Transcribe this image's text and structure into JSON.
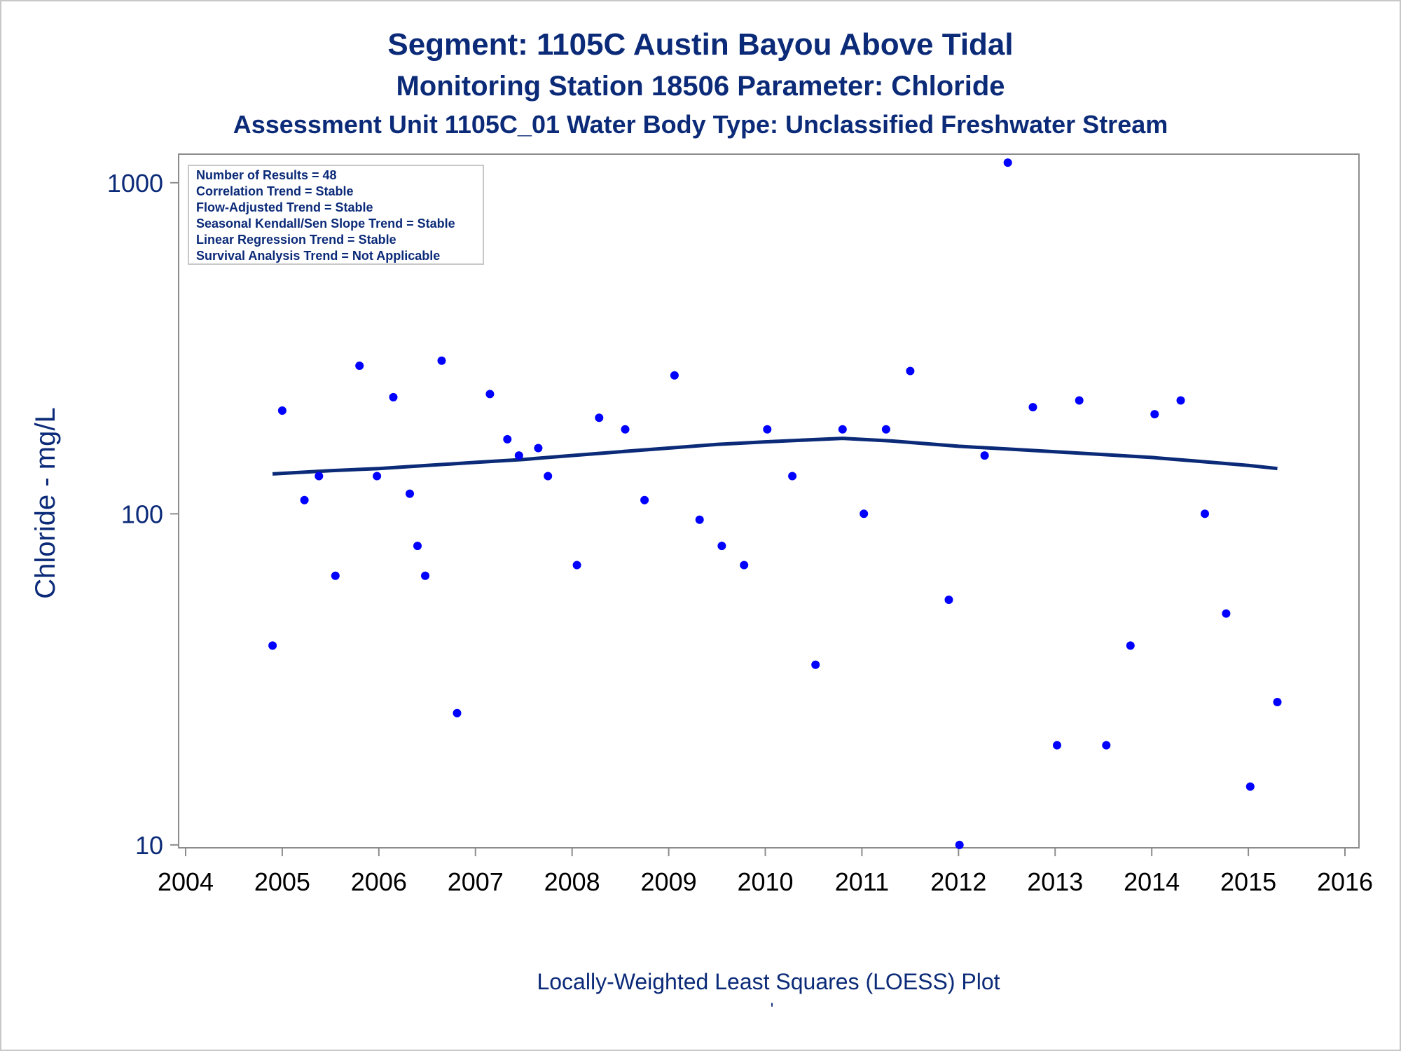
{
  "titles": {
    "line1": "Segment: 1105C  Austin Bayou Above Tidal",
    "line2": "Monitoring Station 18506 Parameter: Chloride",
    "line3": "Assessment Unit 1105C_01   Water Body Type: Unclassified Freshwater Stream"
  },
  "legend_box": {
    "lines": [
      "Number of Results = 48",
      "Correlation Trend = Stable",
      "Flow-Adjusted Trend = Stable",
      "Seasonal Kendall/Sen Slope Trend = Stable",
      "Linear Regression Trend = Stable",
      "Survival Analysis Trend = Not Applicable"
    ]
  },
  "footer": {
    "caption": "Locally-Weighted Least Squares (LOESS) Plot",
    "mark": "'"
  },
  "colors": {
    "title": "#0b2a78",
    "points": "#0000ff",
    "loess": "#0b2a78",
    "axis": "#8c8c8c",
    "frame": "#c8c8c8"
  },
  "chart_data": {
    "type": "scatter",
    "xlabel": "",
    "ylabel": "Chloride - mg/L",
    "yscale": "log",
    "xlim": [
      2004,
      2016
    ],
    "ylim": [
      9.8,
      1220
    ],
    "xticks": [
      "2004",
      "2005",
      "2006",
      "2007",
      "2008",
      "2009",
      "2010",
      "2011",
      "2012",
      "2013",
      "2014",
      "2015",
      "2016"
    ],
    "yticks": [
      "10",
      "100",
      "1000"
    ],
    "ytick_values": [
      10,
      100,
      1000
    ],
    "series": [
      {
        "name": "Chloride observations",
        "points": [
          [
            2004.9,
            40
          ],
          [
            2005.0,
            205
          ],
          [
            2005.23,
            110
          ],
          [
            2005.38,
            130
          ],
          [
            2005.55,
            65
          ],
          [
            2005.8,
            280
          ],
          [
            2005.98,
            130
          ],
          [
            2006.15,
            225
          ],
          [
            2006.32,
            115
          ],
          [
            2006.4,
            80
          ],
          [
            2006.48,
            65
          ],
          [
            2006.65,
            290
          ],
          [
            2006.81,
            25
          ],
          [
            2007.15,
            230
          ],
          [
            2007.33,
            168
          ],
          [
            2007.45,
            150
          ],
          [
            2007.65,
            158
          ],
          [
            2007.75,
            130
          ],
          [
            2008.05,
            70
          ],
          [
            2008.28,
            195
          ],
          [
            2008.55,
            180
          ],
          [
            2008.75,
            110
          ],
          [
            2009.06,
            262
          ],
          [
            2009.32,
            96
          ],
          [
            2009.55,
            80
          ],
          [
            2009.78,
            70
          ],
          [
            2010.02,
            180
          ],
          [
            2010.28,
            130
          ],
          [
            2010.52,
            35
          ],
          [
            2010.8,
            180
          ],
          [
            2011.02,
            100
          ],
          [
            2011.25,
            180
          ],
          [
            2011.5,
            270
          ],
          [
            2011.9,
            55
          ],
          [
            2012.01,
            10
          ],
          [
            2012.27,
            150
          ],
          [
            2012.51,
            1150
          ],
          [
            2012.77,
            210
          ],
          [
            2013.02,
            20
          ],
          [
            2013.25,
            220
          ],
          [
            2013.53,
            20
          ],
          [
            2013.78,
            40
          ],
          [
            2014.03,
            200
          ],
          [
            2014.3,
            220
          ],
          [
            2014.55,
            100
          ],
          [
            2014.77,
            50
          ],
          [
            2015.02,
            15
          ],
          [
            2015.3,
            27
          ]
        ]
      },
      {
        "name": "LOESS",
        "type": "line",
        "points": [
          [
            2004.9,
            132
          ],
          [
            2005.5,
            135
          ],
          [
            2006.0,
            137
          ],
          [
            2006.5,
            140
          ],
          [
            2007.0,
            143
          ],
          [
            2007.5,
            146
          ],
          [
            2008.0,
            150
          ],
          [
            2008.5,
            154
          ],
          [
            2009.0,
            158
          ],
          [
            2009.5,
            162
          ],
          [
            2010.0,
            165
          ],
          [
            2010.8,
            169
          ],
          [
            2011.3,
            166
          ],
          [
            2012.0,
            160
          ],
          [
            2012.5,
            157
          ],
          [
            2013.0,
            154
          ],
          [
            2013.5,
            151
          ],
          [
            2014.0,
            148
          ],
          [
            2014.5,
            144
          ],
          [
            2015.0,
            140
          ],
          [
            2015.3,
            137
          ]
        ]
      }
    ]
  }
}
